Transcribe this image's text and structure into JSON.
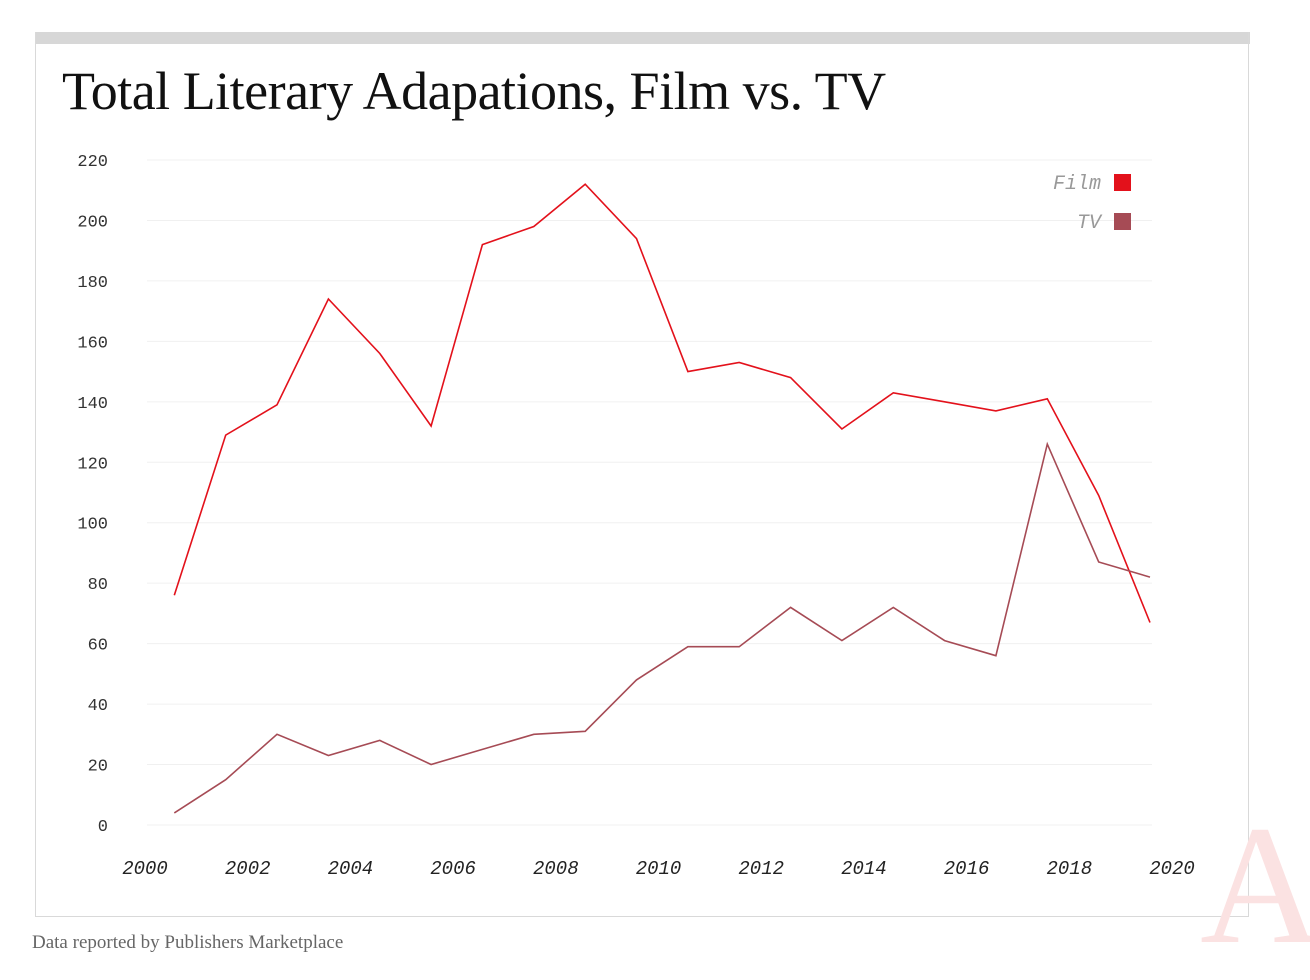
{
  "title": "Total Literary Adapations, Film vs. TV",
  "footer": "Data reported by Publishers Marketplace",
  "logo_letter": "A",
  "colors": {
    "film": "#e3111b",
    "tv": "#a64b55",
    "grid": "#f0f0f0"
  },
  "chart_data": {
    "type": "line",
    "title": "Total Literary Adapations, Film vs. TV",
    "xlabel": "",
    "ylabel": "",
    "xlim": [
      2000,
      2020
    ],
    "ylim": [
      0,
      220
    ],
    "x_ticks": [
      2000,
      2002,
      2004,
      2006,
      2008,
      2010,
      2012,
      2014,
      2016,
      2018,
      2020
    ],
    "y_ticks": [
      0,
      20,
      40,
      60,
      80,
      100,
      120,
      140,
      160,
      180,
      200,
      220
    ],
    "grid": true,
    "legend_position": "top-right",
    "x": [
      2001,
      2002,
      2003,
      2004,
      2005,
      2006,
      2007,
      2008,
      2009,
      2010,
      2011,
      2012,
      2013,
      2014,
      2015,
      2016,
      2017,
      2018,
      2019,
      2020
    ],
    "series": [
      {
        "name": "Film",
        "values": [
          76,
          129,
          139,
          174,
          156,
          132,
          192,
          198,
          212,
          194,
          150,
          153,
          148,
          131,
          143,
          140,
          137,
          141,
          109,
          67
        ]
      },
      {
        "name": "TV",
        "values": [
          4,
          15,
          30,
          23,
          28,
          20,
          25,
          30,
          31,
          48,
          59,
          59,
          72,
          61,
          72,
          61,
          56,
          126,
          87,
          82
        ]
      }
    ]
  }
}
